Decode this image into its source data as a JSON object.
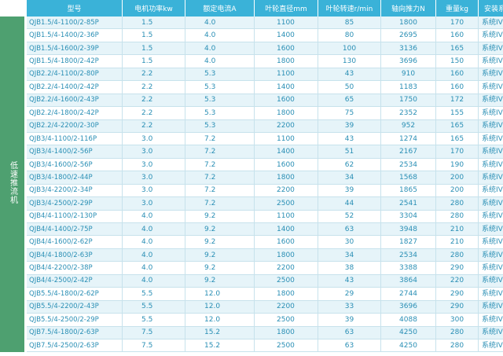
{
  "table": {
    "category": "低速推流机",
    "headers": [
      "型号",
      "电机功率kw",
      "额定电流A",
      "叶轮直径mm",
      "叶轮转速r/min",
      "轴向推力N",
      "重量kg",
      "安装系统"
    ],
    "rows": [
      [
        "QJB1.5/4-1100/2-85P",
        "1.5",
        "4.0",
        "1100",
        "85",
        "1800",
        "170",
        "系统IV"
      ],
      [
        "QJB1.5/4-1400/2-36P",
        "1.5",
        "4.0",
        "1400",
        "80",
        "2695",
        "160",
        "系统IV"
      ],
      [
        "QJB1.5/4-1600/2-39P",
        "1.5",
        "4.0",
        "1600",
        "100",
        "3136",
        "165",
        "系统IV"
      ],
      [
        "QJB1.5/4-1800/2-42P",
        "1.5",
        "4.0",
        "1800",
        "130",
        "3696",
        "150",
        "系统IV"
      ],
      [
        "QJB2.2/4-1100/2-80P",
        "2.2",
        "5.3",
        "1100",
        "43",
        "910",
        "160",
        "系统IV"
      ],
      [
        "QJB2.2/4-1400/2-42P",
        "2.2",
        "5.3",
        "1400",
        "50",
        "1183",
        "160",
        "系统IV"
      ],
      [
        "QJB2.2/4-1600/2-43P",
        "2.2",
        "5.3",
        "1600",
        "65",
        "1750",
        "172",
        "系统IV"
      ],
      [
        "QJB2.2/4-1800/2-42P",
        "2.2",
        "5.3",
        "1800",
        "75",
        "2352",
        "155",
        "系统IV"
      ],
      [
        "QJB2.2/4-2200/2-30P",
        "2.2",
        "5.3",
        "2200",
        "39",
        "952",
        "165",
        "系统IV"
      ],
      [
        "QJB3/4-1100/2-116P",
        "3.0",
        "7.2",
        "1100",
        "43",
        "1274",
        "165",
        "系统IV"
      ],
      [
        "QJB3/4-1400/2-56P",
        "3.0",
        "7.2",
        "1400",
        "51",
        "2167",
        "170",
        "系统IV"
      ],
      [
        "QJB3/4-1600/2-56P",
        "3.0",
        "7.2",
        "1600",
        "62",
        "2534",
        "190",
        "系统IV"
      ],
      [
        "QJB3/4-1800/2-44P",
        "3.0",
        "7.2",
        "1800",
        "34",
        "1568",
        "200",
        "系统IV"
      ],
      [
        "QJB3/4-2200/2-34P",
        "3.0",
        "7.2",
        "2200",
        "39",
        "1865",
        "200",
        "系统IV"
      ],
      [
        "QJB3/4-2500/2-29P",
        "3.0",
        "7.2",
        "2500",
        "44",
        "2541",
        "280",
        "系统IV"
      ],
      [
        "QJB4/4-1100/2-130P",
        "4.0",
        "9.2",
        "1100",
        "52",
        "3304",
        "280",
        "系统IV"
      ],
      [
        "QJB4/4-1400/2-75P",
        "4.0",
        "9.2",
        "1400",
        "63",
        "3948",
        "210",
        "系统IV"
      ],
      [
        "QJB4/4-1600/2-62P",
        "4.0",
        "9.2",
        "1600",
        "30",
        "1827",
        "210",
        "系统IV"
      ],
      [
        "QJB4/4-1800/2-63P",
        "4.0",
        "9.2",
        "1800",
        "34",
        "2534",
        "280",
        "系统IV"
      ],
      [
        "QJB4/4-2200/2-38P",
        "4.0",
        "9.2",
        "2200",
        "38",
        "3388",
        "290",
        "系统IV"
      ],
      [
        "QJB4/4-2500/2-42P",
        "4.0",
        "9.2",
        "2500",
        "43",
        "3864",
        "220",
        "系统IV"
      ],
      [
        "QJB5.5/4-1800/2-62P",
        "5.5",
        "12.0",
        "1800",
        "29",
        "2744",
        "290",
        "系统IV"
      ],
      [
        "QJB5.5/4-2200/2-43P",
        "5.5",
        "12.0",
        "2200",
        "33",
        "3696",
        "290",
        "系统IV"
      ],
      [
        "QJB5.5/4-2500/2-29P",
        "5.5",
        "12.0",
        "2500",
        "39",
        "4088",
        "300",
        "系统IV"
      ],
      [
        "QJB7.5/4-1800/2-63P",
        "7.5",
        "15.2",
        "1800",
        "63",
        "4250",
        "280",
        "系统IV"
      ],
      [
        "QJB7.5/4-2500/2-63P",
        "7.5",
        "15.2",
        "2500",
        "63",
        "4250",
        "280",
        "系统IV"
      ]
    ]
  }
}
